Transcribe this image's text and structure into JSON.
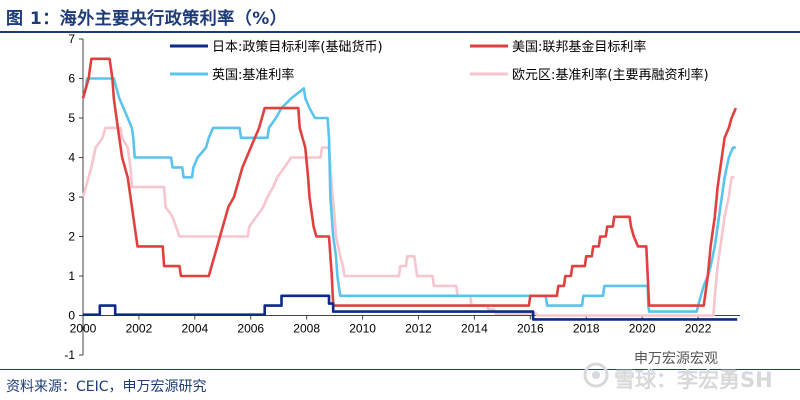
{
  "header": {
    "title": "图 1：海外主要央行政策利率（%）"
  },
  "footer": {
    "source": "资料来源：CEIC，申万宏源研究"
  },
  "watermark": {
    "text": "雪球：李宏勇SH",
    "sub": "申万宏源宏观"
  },
  "chart_data": {
    "type": "line",
    "title": "海外主要央行政策利率（%）",
    "xlim": [
      2000,
      2023.5
    ],
    "ylim": [
      -1,
      7
    ],
    "xticks": [
      2000,
      2002,
      2004,
      2006,
      2008,
      2010,
      2012,
      2014,
      2016,
      2018,
      2020,
      2022
    ],
    "yticks": [
      -1,
      0,
      1,
      2,
      3,
      4,
      5,
      6,
      7
    ],
    "grid": false,
    "legend_position": "top",
    "series": [
      {
        "name": "日本:政策目标利率(基础货币)",
        "color": "#0b2a8a",
        "points": [
          [
            2000,
            0.02
          ],
          [
            2000.6,
            0.02
          ],
          [
            2000.6,
            0.25
          ],
          [
            2001.15,
            0.25
          ],
          [
            2001.15,
            0.02
          ],
          [
            2006.5,
            0.02
          ],
          [
            2006.5,
            0.25
          ],
          [
            2007.1,
            0.25
          ],
          [
            2007.1,
            0.5
          ],
          [
            2008.8,
            0.5
          ],
          [
            2008.8,
            0.3
          ],
          [
            2008.95,
            0.3
          ],
          [
            2008.95,
            0.1
          ],
          [
            2013.3,
            0.1
          ],
          [
            2016.1,
            0.1
          ],
          [
            2016.1,
            -0.1
          ],
          [
            2023.4,
            -0.1
          ]
        ]
      },
      {
        "name": "美国:联邦基金目标利率",
        "color": "#e0413f",
        "points": [
          [
            2000,
            5.5
          ],
          [
            2000.1,
            5.75
          ],
          [
            2000.2,
            6
          ],
          [
            2000.3,
            6.5
          ],
          [
            2000.95,
            6.5
          ],
          [
            2001.05,
            6
          ],
          [
            2001.1,
            5.5
          ],
          [
            2001.2,
            5
          ],
          [
            2001.3,
            4.5
          ],
          [
            2001.4,
            4
          ],
          [
            2001.5,
            3.75
          ],
          [
            2001.6,
            3.5
          ],
          [
            2001.7,
            3
          ],
          [
            2001.8,
            2.5
          ],
          [
            2001.9,
            2
          ],
          [
            2001.95,
            1.75
          ],
          [
            2002.85,
            1.75
          ],
          [
            2002.9,
            1.25
          ],
          [
            2003.45,
            1.25
          ],
          [
            2003.5,
            1
          ],
          [
            2004.5,
            1
          ],
          [
            2004.6,
            1.25
          ],
          [
            2004.7,
            1.5
          ],
          [
            2004.8,
            1.75
          ],
          [
            2004.9,
            2
          ],
          [
            2005,
            2.25
          ],
          [
            2005.1,
            2.5
          ],
          [
            2005.2,
            2.75
          ],
          [
            2005.4,
            3
          ],
          [
            2005.5,
            3.25
          ],
          [
            2005.6,
            3.5
          ],
          [
            2005.7,
            3.75
          ],
          [
            2005.85,
            4
          ],
          [
            2006,
            4.25
          ],
          [
            2006.15,
            4.5
          ],
          [
            2006.3,
            4.75
          ],
          [
            2006.4,
            5
          ],
          [
            2006.5,
            5.25
          ],
          [
            2007.7,
            5.25
          ],
          [
            2007.75,
            4.75
          ],
          [
            2007.85,
            4.5
          ],
          [
            2007.95,
            4.25
          ],
          [
            2008.05,
            3.5
          ],
          [
            2008.1,
            3
          ],
          [
            2008.25,
            2.25
          ],
          [
            2008.35,
            2
          ],
          [
            2008.8,
            2
          ],
          [
            2008.85,
            1.5
          ],
          [
            2008.9,
            1
          ],
          [
            2008.95,
            0.25
          ],
          [
            2015.95,
            0.25
          ],
          [
            2016,
            0.5
          ],
          [
            2016.95,
            0.5
          ],
          [
            2017,
            0.75
          ],
          [
            2017.2,
            0.75
          ],
          [
            2017.25,
            1
          ],
          [
            2017.45,
            1
          ],
          [
            2017.5,
            1.25
          ],
          [
            2017.95,
            1.25
          ],
          [
            2018,
            1.5
          ],
          [
            2018.2,
            1.5
          ],
          [
            2018.25,
            1.75
          ],
          [
            2018.45,
            1.75
          ],
          [
            2018.5,
            2
          ],
          [
            2018.7,
            2
          ],
          [
            2018.75,
            2.25
          ],
          [
            2018.95,
            2.25
          ],
          [
            2019,
            2.5
          ],
          [
            2019.55,
            2.5
          ],
          [
            2019.6,
            2.25
          ],
          [
            2019.7,
            2
          ],
          [
            2019.85,
            1.75
          ],
          [
            2020.15,
            1.75
          ],
          [
            2020.2,
            1
          ],
          [
            2020.25,
            0.25
          ],
          [
            2022.2,
            0.25
          ],
          [
            2022.25,
            0.5
          ],
          [
            2022.35,
            1
          ],
          [
            2022.45,
            1.75
          ],
          [
            2022.6,
            2.5
          ],
          [
            2022.7,
            3.25
          ],
          [
            2022.85,
            4
          ],
          [
            2022.95,
            4.5
          ],
          [
            2023.1,
            4.75
          ],
          [
            2023.2,
            5
          ],
          [
            2023.35,
            5.25
          ]
        ]
      },
      {
        "name": "英国:基准利率",
        "color": "#5bc4ec",
        "points": [
          [
            2000,
            5.5
          ],
          [
            2000.1,
            5.75
          ],
          [
            2000.15,
            6
          ],
          [
            2001.1,
            6
          ],
          [
            2001.2,
            5.75
          ],
          [
            2001.3,
            5.5
          ],
          [
            2001.45,
            5.25
          ],
          [
            2001.6,
            5
          ],
          [
            2001.75,
            4.75
          ],
          [
            2001.8,
            4.5
          ],
          [
            2001.85,
            4
          ],
          [
            2003.15,
            4
          ],
          [
            2003.2,
            3.75
          ],
          [
            2003.55,
            3.75
          ],
          [
            2003.6,
            3.5
          ],
          [
            2003.9,
            3.5
          ],
          [
            2003.95,
            3.75
          ],
          [
            2004.1,
            4
          ],
          [
            2004.4,
            4.25
          ],
          [
            2004.5,
            4.5
          ],
          [
            2004.65,
            4.75
          ],
          [
            2005.6,
            4.75
          ],
          [
            2005.65,
            4.5
          ],
          [
            2006.6,
            4.5
          ],
          [
            2006.65,
            4.75
          ],
          [
            2006.9,
            5
          ],
          [
            2007.1,
            5.25
          ],
          [
            2007.45,
            5.5
          ],
          [
            2007.9,
            5.75
          ],
          [
            2007.95,
            5.5
          ],
          [
            2008.1,
            5.25
          ],
          [
            2008.3,
            5
          ],
          [
            2008.75,
            5
          ],
          [
            2008.8,
            4.5
          ],
          [
            2008.85,
            3
          ],
          [
            2008.95,
            2
          ],
          [
            2009.05,
            1.5
          ],
          [
            2009.1,
            1
          ],
          [
            2009.2,
            0.5
          ],
          [
            2016.55,
            0.5
          ],
          [
            2016.6,
            0.25
          ],
          [
            2017.85,
            0.25
          ],
          [
            2017.9,
            0.5
          ],
          [
            2018.6,
            0.5
          ],
          [
            2018.65,
            0.75
          ],
          [
            2020.2,
            0.75
          ],
          [
            2020.22,
            0.25
          ],
          [
            2020.25,
            0.1
          ],
          [
            2021.95,
            0.1
          ],
          [
            2022,
            0.25
          ],
          [
            2022.1,
            0.5
          ],
          [
            2022.2,
            0.75
          ],
          [
            2022.35,
            1
          ],
          [
            2022.45,
            1.25
          ],
          [
            2022.6,
            1.75
          ],
          [
            2022.7,
            2.25
          ],
          [
            2022.85,
            3
          ],
          [
            2022.95,
            3.5
          ],
          [
            2023.1,
            4
          ],
          [
            2023.25,
            4.25
          ],
          [
            2023.35,
            4.25
          ]
        ]
      },
      {
        "name": "欧元区:基准利率(主要再融资利率)",
        "color": "#f7c5ce",
        "points": [
          [
            2000,
            3
          ],
          [
            2000.1,
            3.25
          ],
          [
            2000.2,
            3.5
          ],
          [
            2000.3,
            3.75
          ],
          [
            2000.45,
            4.25
          ],
          [
            2000.7,
            4.5
          ],
          [
            2000.8,
            4.75
          ],
          [
            2001.35,
            4.75
          ],
          [
            2001.4,
            4.5
          ],
          [
            2001.6,
            4.25
          ],
          [
            2001.7,
            3.75
          ],
          [
            2001.75,
            3.25
          ],
          [
            2002.9,
            3.25
          ],
          [
            2002.95,
            2.75
          ],
          [
            2003.2,
            2.5
          ],
          [
            2003.45,
            2
          ],
          [
            2005.9,
            2
          ],
          [
            2005.95,
            2.25
          ],
          [
            2006.2,
            2.5
          ],
          [
            2006.45,
            2.75
          ],
          [
            2006.6,
            3
          ],
          [
            2006.8,
            3.25
          ],
          [
            2006.95,
            3.5
          ],
          [
            2007.2,
            3.75
          ],
          [
            2007.45,
            4
          ],
          [
            2008.5,
            4
          ],
          [
            2008.55,
            4.25
          ],
          [
            2008.8,
            4.25
          ],
          [
            2008.85,
            3.75
          ],
          [
            2008.9,
            3.25
          ],
          [
            2009,
            2.5
          ],
          [
            2009.05,
            2
          ],
          [
            2009.2,
            1.5
          ],
          [
            2009.3,
            1.25
          ],
          [
            2009.35,
            1
          ],
          [
            2011.3,
            1
          ],
          [
            2011.35,
            1.25
          ],
          [
            2011.55,
            1.25
          ],
          [
            2011.6,
            1.5
          ],
          [
            2011.85,
            1.5
          ],
          [
            2011.9,
            1.25
          ],
          [
            2011.95,
            1
          ],
          [
            2012.5,
            1
          ],
          [
            2012.55,
            0.75
          ],
          [
            2013.35,
            0.75
          ],
          [
            2013.4,
            0.5
          ],
          [
            2013.85,
            0.5
          ],
          [
            2013.9,
            0.25
          ],
          [
            2014.45,
            0.25
          ],
          [
            2014.5,
            0.15
          ],
          [
            2014.7,
            0.15
          ],
          [
            2014.75,
            0.05
          ],
          [
            2016.2,
            0.05
          ],
          [
            2016.25,
            0
          ],
          [
            2022.55,
            0
          ],
          [
            2022.6,
            0.5
          ],
          [
            2022.7,
            1.25
          ],
          [
            2022.85,
            2
          ],
          [
            2022.95,
            2.5
          ],
          [
            2023.1,
            3
          ],
          [
            2023.2,
            3.5
          ],
          [
            2023.3,
            3.5
          ]
        ]
      }
    ]
  }
}
